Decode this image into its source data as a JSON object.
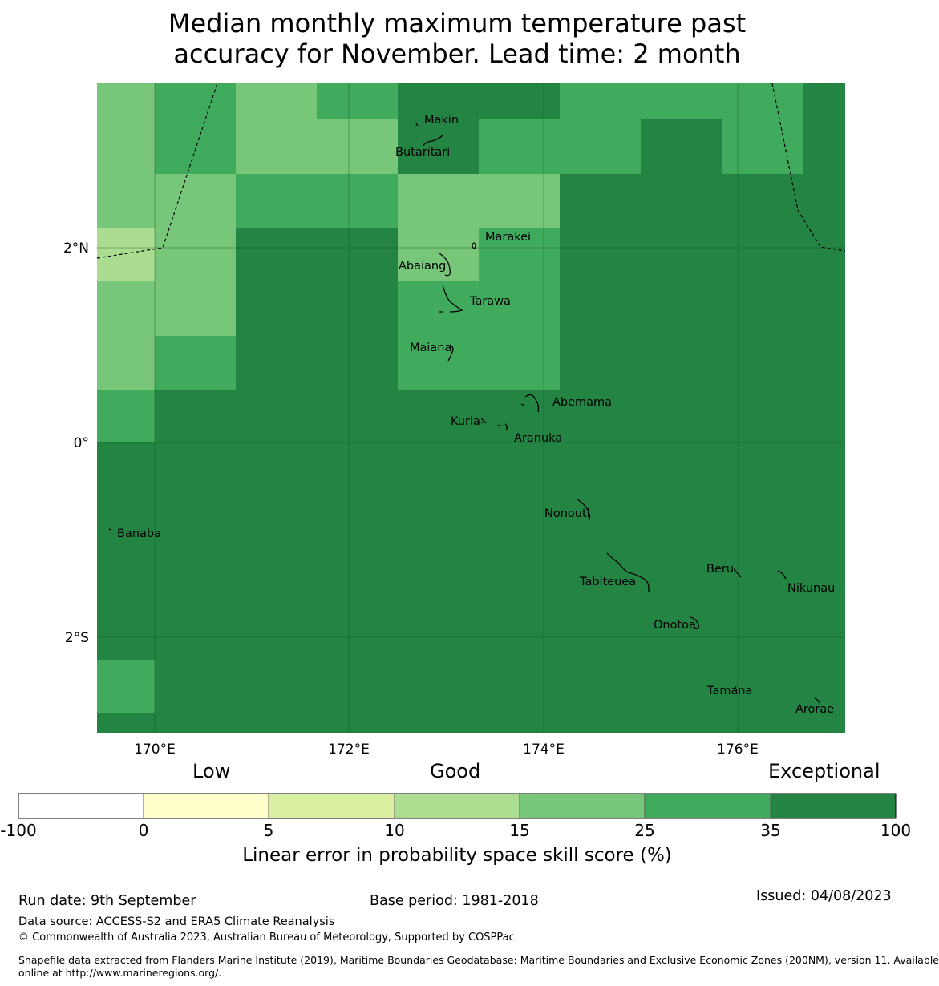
{
  "title": {
    "line1": "Median monthly maximum temperature past",
    "line2": "accuracy for November. Lead time: 2 month"
  },
  "map": {
    "lon_ticks": [
      "170°E",
      "172°E",
      "174°E",
      "176°E"
    ],
    "lat_ticks": [
      "2°N",
      "0°",
      "2°S"
    ],
    "islands": [
      "Makin",
      "Butaritari",
      "Marakei",
      "Abaiang",
      "Tarawa",
      "Maiana",
      "Abemama",
      "Kuria",
      "Aranuka",
      "Banaba",
      "Nonouti",
      "Beru",
      "Tabiteuea",
      "Nikunau",
      "Onotoa",
      "Tamana",
      "Arorae"
    ],
    "cell_colors": {
      "c10_15": "#aadd8f",
      "c15_25": "#78c679",
      "c25_35": "#41ab5d",
      "c35_100": "#238443"
    }
  },
  "colorbar": {
    "categories": [
      "Low",
      "Good",
      "Exceptional"
    ],
    "ticks": [
      "-100",
      "0",
      "5",
      "10",
      "15",
      "25",
      "35",
      "100"
    ],
    "colors": [
      "#ffffff",
      "#ffffcc",
      "#d9f0a3",
      "#addd8e",
      "#78c679",
      "#41ab5d",
      "#238443"
    ],
    "label": "Linear error in probability space skill score (%)"
  },
  "footer": {
    "run_date": "Run date: 9th September",
    "base_period": "Base period: 1981-2018",
    "issued": "Issued: 04/08/2023",
    "data_source": "Data source: ACCESS-S2 and ERA5 Climate Reanalysis",
    "copyright": "© Commonwealth of Australia 2023, Australian Bureau of Meteorology, Supported by COSPPac",
    "shapefile_line1": "Shapefile data extracted from Flanders Marine Institute (2019), Maritime Boundaries Geodatabase: Maritime Boundaries and Exclusive Economic Zones (200NM), version 11. Available",
    "shapefile_line2": "online at http://www.marineregions.org/."
  }
}
